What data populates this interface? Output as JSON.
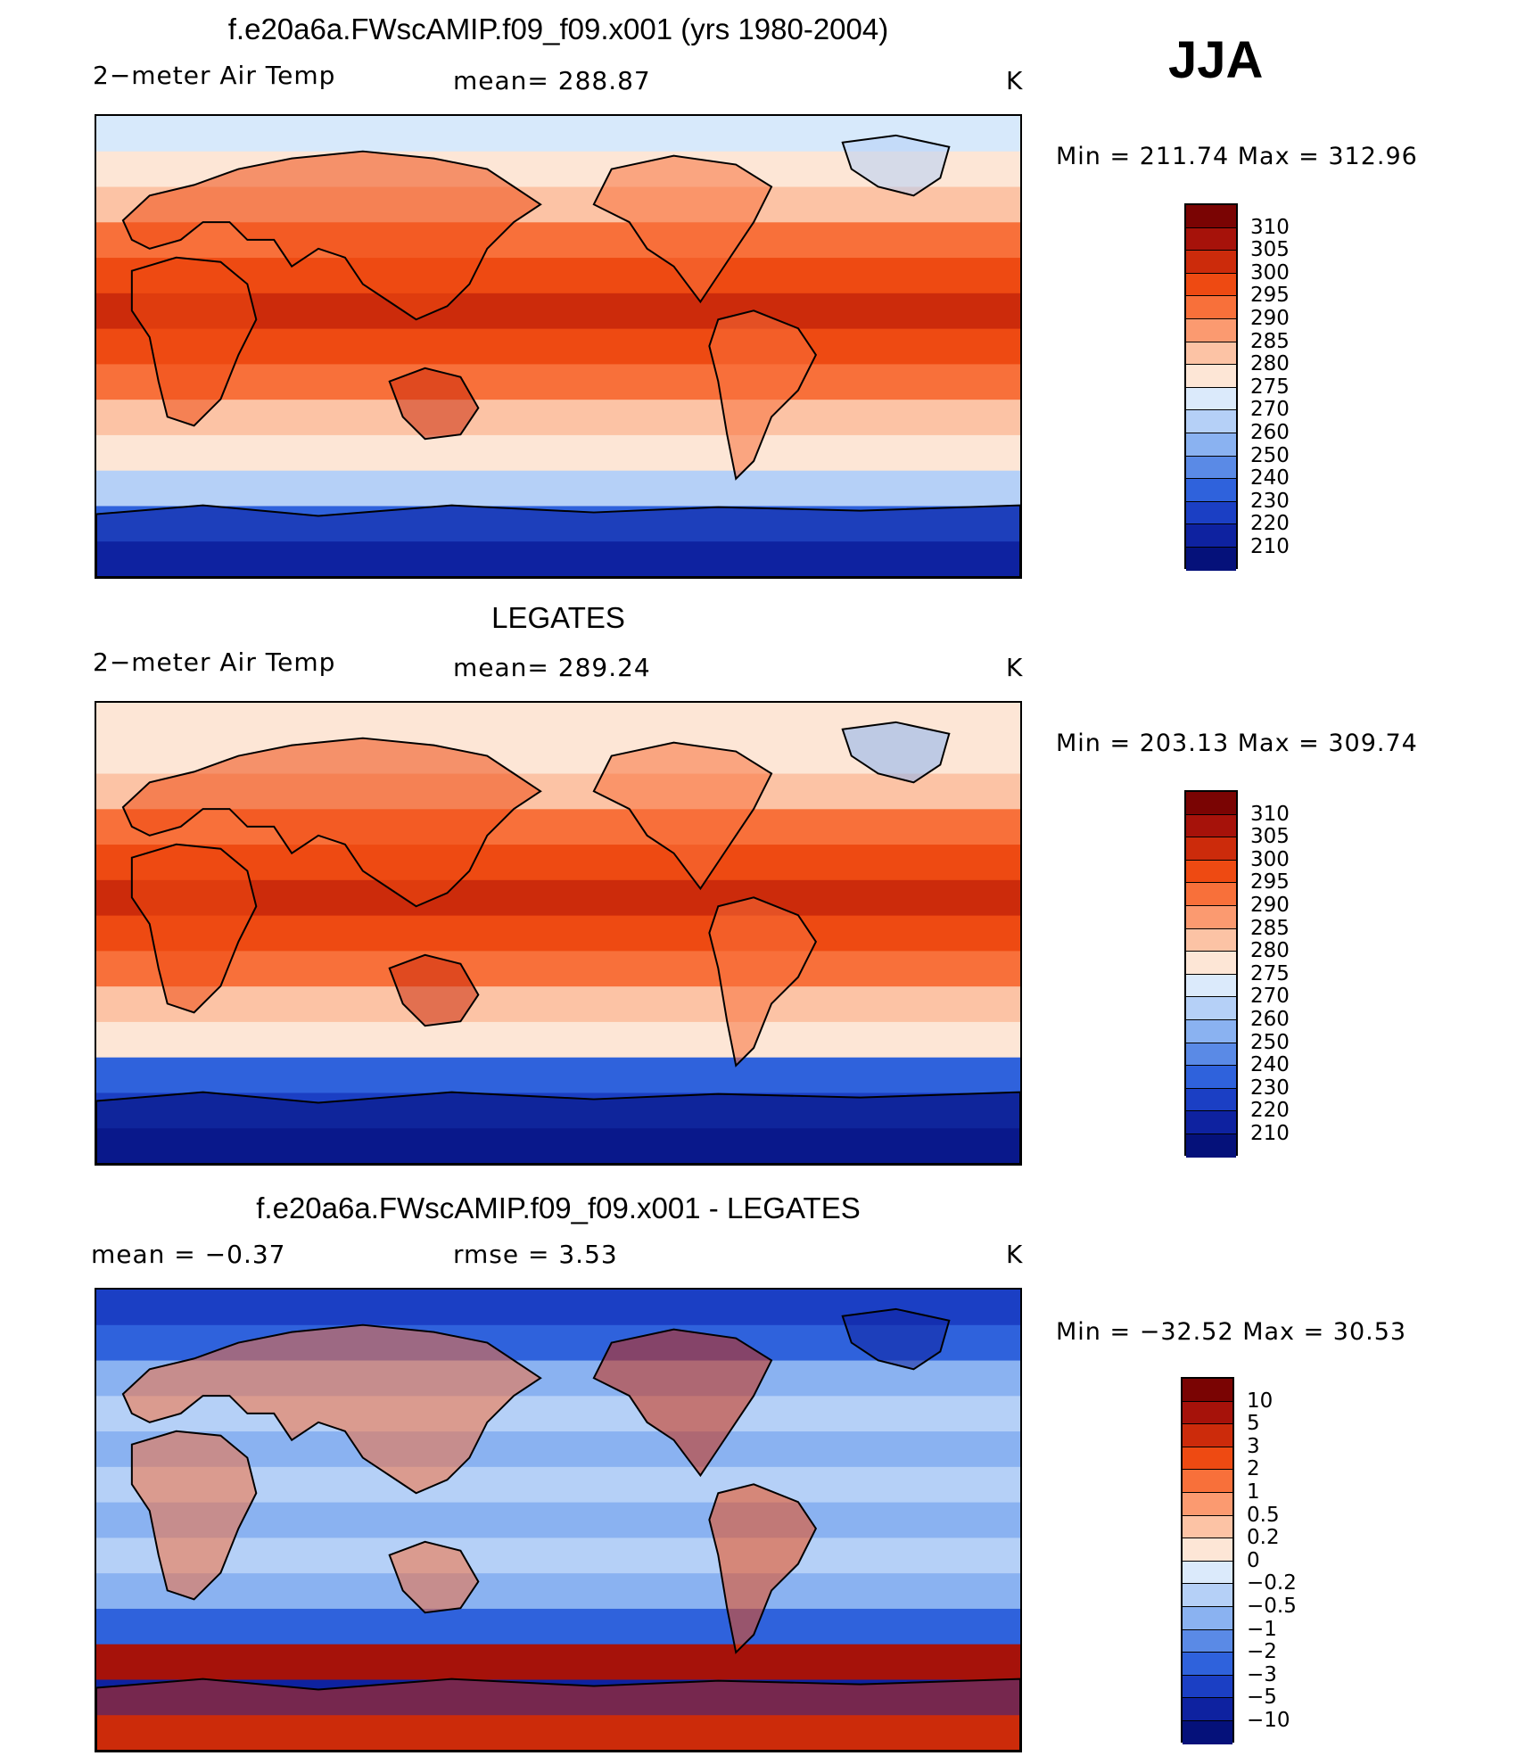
{
  "season": "JJA",
  "panels": [
    {
      "id": "model",
      "title": "f.e20a6a.FWscAMIP.f09_f09.x001 (yrs 1980-2004)",
      "left_label": "2−meter Air Temp",
      "stat1": "mean=  288.87",
      "stat2": "",
      "units": "K",
      "minmax": "Min  =  211.74  Max  =  312.96",
      "colorbar": {
        "labels": [
          "310",
          "305",
          "300",
          "295",
          "290",
          "285",
          "280",
          "275",
          "270",
          "260",
          "250",
          "240",
          "230",
          "220",
          "210"
        ],
        "colors": [
          "#7a0403",
          "#a6120a",
          "#cc2b0b",
          "#ee4a12",
          "#f8703a",
          "#fb9a70",
          "#fcc3a5",
          "#fde6d6",
          "#dbeafb",
          "#b5d0f7",
          "#8ab2f1",
          "#5a8ae6",
          "#2f62dc",
          "#1b3fc4",
          "#0e22a0",
          "#05117a"
        ]
      },
      "map_colors": {
        "ocean_band": [
          "#d7e9fb",
          "#fde6d6",
          "#fcc3a5",
          "#f8703a",
          "#ee4a12",
          "#cc2b0b",
          "#ee4a12",
          "#f8703a",
          "#fcc3a5",
          "#fde6d6",
          "#b5d0f7",
          "#2f62dc",
          "#0e22a0"
        ]
      }
    },
    {
      "id": "obs",
      "title": "LEGATES",
      "left_label": "2−meter Air Temp",
      "stat1": "mean=  289.24",
      "stat2": "",
      "units": "K",
      "minmax": "Min  =  203.13  Max  =  309.74",
      "colorbar": {
        "labels": [
          "310",
          "305",
          "300",
          "295",
          "290",
          "285",
          "280",
          "275",
          "270",
          "260",
          "250",
          "240",
          "230",
          "220",
          "210"
        ],
        "colors": [
          "#7a0403",
          "#a6120a",
          "#cc2b0b",
          "#ee4a12",
          "#f8703a",
          "#fb9a70",
          "#fcc3a5",
          "#fde6d6",
          "#dbeafb",
          "#b5d0f7",
          "#8ab2f1",
          "#5a8ae6",
          "#2f62dc",
          "#1b3fc4",
          "#0e22a0",
          "#05117a"
        ]
      },
      "map_colors": {
        "ocean_band": [
          "#fde6d6",
          "#fde6d6",
          "#fcc3a5",
          "#f8703a",
          "#ee4a12",
          "#cc2b0b",
          "#ee4a12",
          "#f8703a",
          "#fcc3a5",
          "#fde6d6",
          "#2f62dc",
          "#1b3fc4",
          "#0e22a0"
        ]
      }
    },
    {
      "id": "diff",
      "title": "f.e20a6a.FWscAMIP.f09_f09.x001 - LEGATES",
      "left_label": "mean  =    −0.37",
      "stat1": "rmse  =     3.53",
      "stat2": "",
      "units": "K",
      "minmax": "Min  =  −32.52  Max  =    30.53",
      "colorbar": {
        "labels": [
          "10",
          "5",
          "3",
          "2",
          "1",
          "0.5",
          "0.2",
          "0",
          "−0.2",
          "−0.5",
          "−1",
          "−2",
          "−3",
          "−5",
          "−10"
        ],
        "colors": [
          "#7a0403",
          "#a6120a",
          "#cc2b0b",
          "#ee4a12",
          "#f8703a",
          "#fb9a70",
          "#fcc3a5",
          "#fde6d6",
          "#dbeafb",
          "#b5d0f7",
          "#8ab2f1",
          "#5a8ae6",
          "#2f62dc",
          "#1b3fc4",
          "#0e22a0",
          "#05117a"
        ]
      },
      "map_colors": {
        "ocean_band": [
          "#1b3fc4",
          "#2f62dc",
          "#8ab2f1",
          "#b5d0f7",
          "#8ab2f1",
          "#b5d0f7",
          "#8ab2f1",
          "#b5d0f7",
          "#8ab2f1",
          "#2f62dc",
          "#a6120a",
          "#0e22a0",
          "#cc2b0b"
        ]
      }
    }
  ]
}
